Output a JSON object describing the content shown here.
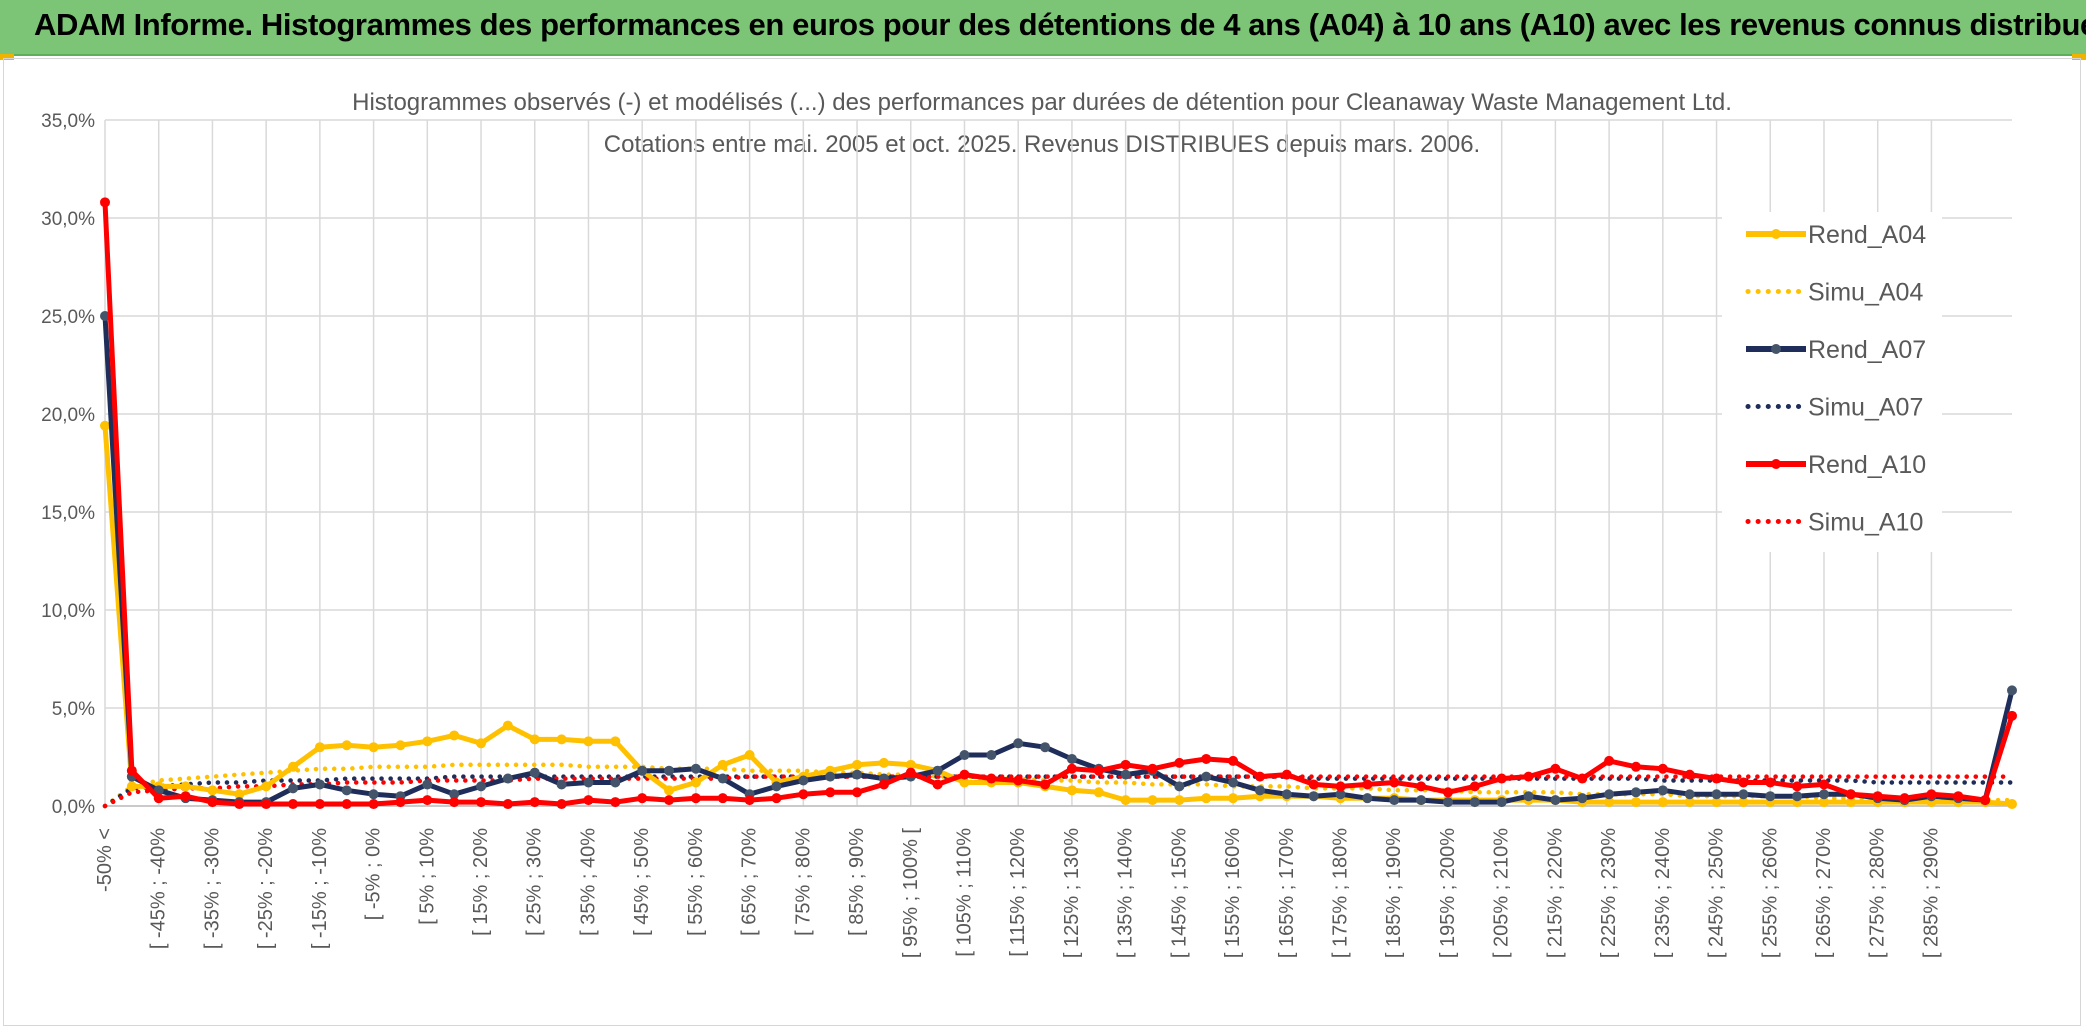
{
  "banner": {
    "title": "ADAM Informe. Histogrammes des performances en euros pour des détentions de 4 ans (A04) à 10 ans (A10) avec les revenus connus distribués",
    "background": "#7cc576"
  },
  "chart_data": {
    "type": "line",
    "title": "Histogrammes observés (-) et modélisés (...) des performances par durées de détention pour Cleanaway Waste Management Ltd.",
    "subtitle": "Cotations entre mai. 2005 et oct. 2025. Revenus DISTRIBUES depuis mars. 2006.",
    "xlabel": "",
    "ylabel": "",
    "ylim": [
      0,
      35
    ],
    "yticks": [
      "0,0%",
      "5,0%",
      "10,0%",
      "15,0%",
      "20,0%",
      "25,0%",
      "30,0%",
      "35,0%"
    ],
    "grid": true,
    "legend_position": "right",
    "x_tick_labels": [
      "-50% <",
      "[ -45% ; -40%",
      "[ -35% ; -30%",
      "[ -25% ; -20%",
      "[ -15% ; -10%",
      "[ -5% ; 0%",
      "[ 5% ; 10%",
      "[ 15% ; 20%",
      "[ 25% ; 30%",
      "[ 35% ; 40%",
      "[ 45% ; 50%",
      "[ 55% ; 60%",
      "[ 65% ; 70%",
      "[ 75% ; 80%",
      "[ 85% ; 90%",
      "[ 95% ; 100% [",
      "[ 105% ; 110%",
      "[ 115% ; 120%",
      "[ 125% ; 130%",
      "[ 135% ; 140%",
      "[ 145% ; 150%",
      "[ 155% ; 160%",
      "[ 165% ; 170%",
      "[ 175% ; 180%",
      "[ 185% ; 190%",
      "[ 195% ; 200%",
      "[ 205% ; 210%",
      "[ 215% ; 220%",
      "[ 225% ; 230%",
      "[ 235% ; 240%",
      "[ 245% ; 250%",
      "[ 255% ; 260%",
      "[ 265% ; 270%",
      "[ 275% ; 280%",
      "[ 285% ; 290%"
    ],
    "series": [
      {
        "name": "Rend_A04",
        "style": "solid",
        "color": "#ffc000",
        "values": [
          19.4,
          1.0,
          1.0,
          1.0,
          0.8,
          0.6,
          1.0,
          2.0,
          3.0,
          3.1,
          3.0,
          3.1,
          3.3,
          3.6,
          3.2,
          4.1,
          3.4,
          3.4,
          3.3,
          3.3,
          1.8,
          0.8,
          1.2,
          2.1,
          2.6,
          1.2,
          1.5,
          1.8,
          2.1,
          2.2,
          2.1,
          1.8,
          1.2,
          1.2,
          1.2,
          1.0,
          0.8,
          0.7,
          0.3,
          0.3,
          0.3,
          0.4,
          0.4,
          0.5,
          0.5,
          0.5,
          0.4,
          0.4,
          0.4,
          0.3,
          0.3,
          0.3,
          0.3,
          0.3,
          0.3,
          0.2,
          0.2,
          0.2,
          0.2,
          0.2,
          0.2,
          0.2,
          0.2,
          0.2,
          0.2,
          0.2,
          0.2,
          0.2,
          0.2,
          0.2,
          0.2,
          0.1
        ]
      },
      {
        "name": "Simu_A04",
        "style": "dotted",
        "color": "#ffc000",
        "values": [
          0.0,
          1.0,
          1.3,
          1.4,
          1.5,
          1.6,
          1.7,
          1.8,
          1.9,
          1.9,
          2.0,
          2.0,
          2.0,
          2.1,
          2.1,
          2.1,
          2.1,
          2.1,
          2.0,
          2.0,
          2.0,
          1.9,
          1.9,
          1.9,
          1.8,
          1.8,
          1.8,
          1.7,
          1.7,
          1.6,
          1.6,
          1.5,
          1.5,
          1.4,
          1.4,
          1.3,
          1.3,
          1.2,
          1.2,
          1.1,
          1.1,
          1.1,
          1.0,
          1.0,
          1.0,
          0.9,
          0.9,
          0.9,
          0.8,
          0.8,
          0.8,
          0.7,
          0.7,
          0.7,
          0.7,
          0.6,
          0.6,
          0.6,
          0.6,
          0.5,
          0.5,
          0.5,
          0.5,
          0.5,
          0.4,
          0.4,
          0.4,
          0.4,
          0.4,
          0.3,
          0.3,
          0.3
        ]
      },
      {
        "name": "Rend_A07",
        "style": "solid",
        "color": "#1f2d5a",
        "values": [
          25.0,
          1.5,
          0.8,
          0.4,
          0.3,
          0.2,
          0.2,
          0.9,
          1.1,
          0.8,
          0.6,
          0.5,
          1.1,
          0.6,
          1.0,
          1.4,
          1.7,
          1.1,
          1.2,
          1.2,
          1.8,
          1.8,
          1.9,
          1.4,
          0.6,
          1.0,
          1.3,
          1.5,
          1.6,
          1.4,
          1.5,
          1.8,
          2.6,
          2.6,
          3.2,
          3.0,
          2.4,
          1.9,
          1.6,
          1.8,
          1.0,
          1.5,
          1.2,
          0.8,
          0.6,
          0.5,
          0.6,
          0.4,
          0.3,
          0.3,
          0.2,
          0.2,
          0.2,
          0.5,
          0.3,
          0.4,
          0.6,
          0.7,
          0.8,
          0.6,
          0.6,
          0.6,
          0.5,
          0.5,
          0.6,
          0.6,
          0.4,
          0.3,
          0.5,
          0.4,
          0.3,
          5.9
        ]
      },
      {
        "name": "Simu_A07",
        "style": "dotted",
        "color": "#1f2d5a",
        "values": [
          0.0,
          0.9,
          1.0,
          1.1,
          1.2,
          1.2,
          1.3,
          1.3,
          1.3,
          1.4,
          1.4,
          1.4,
          1.4,
          1.5,
          1.5,
          1.5,
          1.5,
          1.5,
          1.5,
          1.5,
          1.5,
          1.5,
          1.5,
          1.5,
          1.5,
          1.5,
          1.5,
          1.5,
          1.5,
          1.5,
          1.5,
          1.5,
          1.5,
          1.5,
          1.5,
          1.5,
          1.5,
          1.5,
          1.5,
          1.5,
          1.5,
          1.5,
          1.5,
          1.5,
          1.5,
          1.4,
          1.4,
          1.4,
          1.4,
          1.4,
          1.4,
          1.4,
          1.4,
          1.4,
          1.4,
          1.4,
          1.4,
          1.4,
          1.3,
          1.3,
          1.3,
          1.3,
          1.3,
          1.3,
          1.3,
          1.3,
          1.2,
          1.2,
          1.2,
          1.2,
          1.2,
          1.2
        ]
      },
      {
        "name": "Rend_A10",
        "style": "solid",
        "color": "#ff0000",
        "values": [
          30.8,
          1.8,
          0.4,
          0.5,
          0.2,
          0.1,
          0.1,
          0.1,
          0.1,
          0.1,
          0.1,
          0.2,
          0.3,
          0.2,
          0.2,
          0.1,
          0.2,
          0.1,
          0.3,
          0.2,
          0.4,
          0.3,
          0.4,
          0.4,
          0.3,
          0.4,
          0.6,
          0.7,
          0.7,
          1.1,
          1.7,
          1.1,
          1.6,
          1.4,
          1.3,
          1.1,
          1.9,
          1.8,
          2.1,
          1.9,
          2.2,
          2.4,
          2.3,
          1.5,
          1.6,
          1.1,
          1.0,
          1.1,
          1.2,
          1.0,
          0.7,
          1.0,
          1.4,
          1.5,
          1.9,
          1.4,
          2.3,
          2.0,
          1.9,
          1.6,
          1.4,
          1.2,
          1.2,
          1.0,
          1.1,
          0.6,
          0.5,
          0.4,
          0.6,
          0.5,
          0.3,
          4.6
        ]
      },
      {
        "name": "Simu_A10",
        "style": "dotted",
        "color": "#ff0000",
        "values": [
          0.0,
          0.7,
          0.8,
          0.9,
          0.9,
          1.0,
          1.0,
          1.1,
          1.1,
          1.2,
          1.2,
          1.2,
          1.3,
          1.3,
          1.3,
          1.3,
          1.4,
          1.4,
          1.4,
          1.4,
          1.4,
          1.4,
          1.4,
          1.4,
          1.5,
          1.5,
          1.5,
          1.5,
          1.5,
          1.5,
          1.5,
          1.5,
          1.5,
          1.5,
          1.5,
          1.5,
          1.5,
          1.5,
          1.5,
          1.5,
          1.5,
          1.5,
          1.5,
          1.5,
          1.5,
          1.5,
          1.5,
          1.5,
          1.5,
          1.5,
          1.5,
          1.5,
          1.5,
          1.5,
          1.5,
          1.5,
          1.5,
          1.5,
          1.5,
          1.5,
          1.5,
          1.5,
          1.5,
          1.5,
          1.5,
          1.5,
          1.5,
          1.5,
          1.5,
          1.5,
          1.5,
          1.5
        ]
      }
    ]
  }
}
